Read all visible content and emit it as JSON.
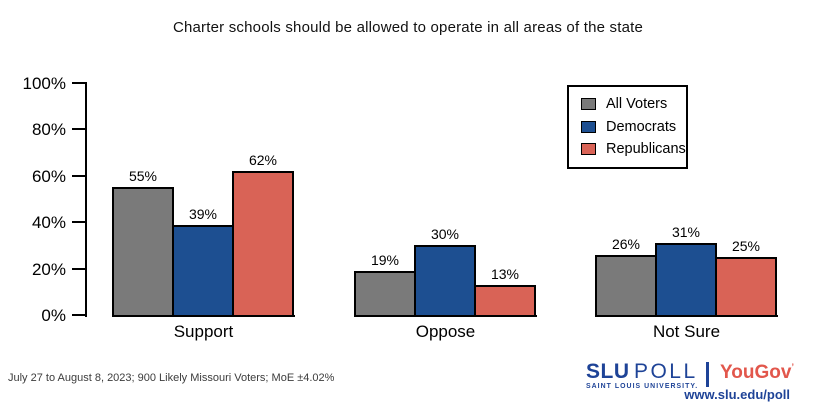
{
  "chart_data": {
    "type": "bar",
    "title": "Charter schools should be allowed to operate in all areas of the state",
    "categories": [
      "Support",
      "Oppose",
      "Not Sure"
    ],
    "series": [
      {
        "name": "All Voters",
        "color": "#7a7a7a",
        "values": [
          55,
          19,
          26
        ]
      },
      {
        "name": "Democrats",
        "color": "#1d4f91",
        "values": [
          39,
          30,
          31
        ]
      },
      {
        "name": "Republicans",
        "color": "#d96356",
        "values": [
          62,
          13,
          25
        ]
      }
    ],
    "xlabel": "",
    "ylabel": "",
    "ylim": [
      0,
      100
    ],
    "ytick_values": [
      0,
      20,
      40,
      60,
      80,
      100
    ],
    "ytick_labels": [
      "0%",
      "20%",
      "40%",
      "60%",
      "80%",
      "100%"
    ],
    "data_label_suffix": "%",
    "legend_position": "top-right",
    "grid": false,
    "bar_border_color": "#000000"
  },
  "footer": {
    "source_note": "July 27 to August 8, 2023; 900 Likely Missouri Voters; MoE ±4.02%"
  },
  "branding": {
    "slu": "SLU",
    "poll": "POLL",
    "university": "SAINT LOUIS UNIVERSITY.",
    "yougov": "YouGov",
    "yougov_mark": "’",
    "url": "www.slu.edu/poll",
    "slu_color": "#1e4397",
    "separator_color": "#1e4397",
    "yougov_color": "#e2574c"
  }
}
